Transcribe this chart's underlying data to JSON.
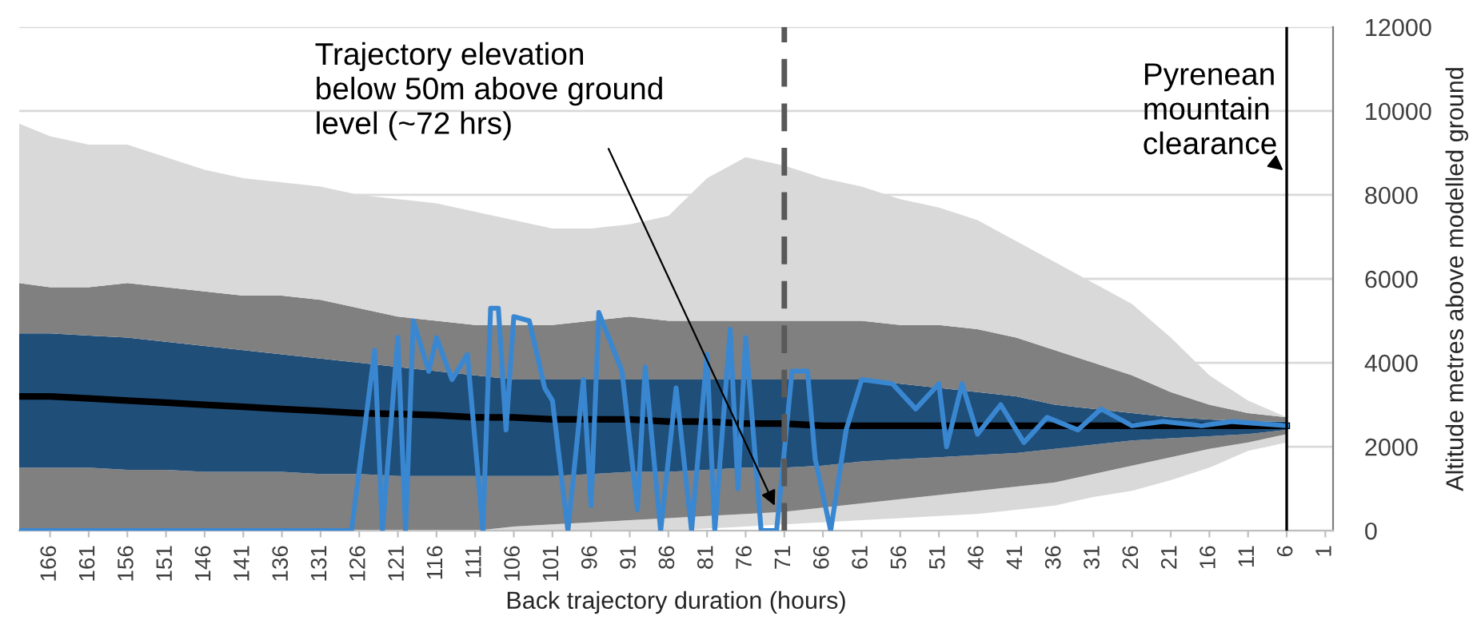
{
  "chart_data": {
    "type": "area",
    "xlabel": "Back trajectory duration (hours)",
    "ylabel": "Altitude metres above modelled ground",
    "x": [
      170,
      166,
      161,
      156,
      151,
      146,
      141,
      136,
      131,
      126,
      121,
      116,
      111,
      106,
      101,
      96,
      91,
      86,
      81,
      76,
      71,
      66,
      61,
      56,
      51,
      46,
      41,
      36,
      31,
      26,
      21,
      16,
      11,
      6
    ],
    "series": [
      {
        "color": "#ffffff",
        "values": [
          0,
          0,
          0,
          0,
          0,
          0,
          0,
          0,
          0,
          0,
          0,
          0,
          0,
          0,
          0,
          0,
          0,
          0,
          50,
          100,
          150,
          200,
          250,
          300,
          350,
          400,
          500,
          600,
          800,
          950,
          1200,
          1500,
          1900,
          2100
        ]
      },
      {
        "color": "#d9d9d9",
        "values": [
          0,
          0,
          0,
          0,
          0,
          0,
          0,
          0,
          0,
          0,
          0,
          0,
          0,
          100,
          150,
          200,
          250,
          300,
          300,
          300,
          300,
          350,
          400,
          450,
          500,
          550,
          550,
          550,
          550,
          600,
          550,
          450,
          200,
          200
        ]
      },
      {
        "color": "#808080",
        "values": [
          1500,
          1500,
          1500,
          1450,
          1450,
          1400,
          1400,
          1400,
          1350,
          1350,
          1300,
          1300,
          1300,
          1200,
          1150,
          1150,
          1150,
          1100,
          1100,
          1100,
          1050,
          1000,
          1000,
          950,
          900,
          850,
          800,
          800,
          700,
          600,
          450,
          300,
          200,
          100
        ]
      },
      {
        "color": "#1f4e79",
        "values": [
          3200,
          3200,
          3150,
          3150,
          3050,
          3000,
          2900,
          2800,
          2750,
          2650,
          2600,
          2500,
          2400,
          2300,
          2300,
          2250,
          2200,
          2200,
          2150,
          2100,
          2100,
          2050,
          1950,
          1800,
          1650,
          1500,
          1350,
          1050,
          850,
          650,
          500,
          400,
          300,
          200
        ]
      },
      {
        "color": "#808080",
        "values": [
          1200,
          1100,
          1150,
          1300,
          1300,
          1300,
          1300,
          1400,
          1400,
          1300,
          1200,
          1200,
          1200,
          1300,
          1300,
          1400,
          1500,
          1400,
          1400,
          1400,
          1400,
          1400,
          1400,
          1400,
          1500,
          1500,
          1400,
          1300,
          1100,
          900,
          600,
          350,
          200,
          100
        ]
      },
      {
        "color": "#d9d9d9",
        "values": [
          3800,
          3600,
          3400,
          3300,
          3100,
          2900,
          2800,
          2700,
          2700,
          2700,
          2800,
          2800,
          2700,
          2500,
          2300,
          2200,
          2200,
          2500,
          3400,
          3900,
          3700,
          3400,
          3200,
          3000,
          2800,
          2600,
          2300,
          2100,
          1900,
          1700,
          1300,
          700,
          300,
          0
        ]
      },
      {
        "type": "line",
        "color": "#000000",
        "values": [
          3200,
          3200,
          3150,
          3100,
          3050,
          3000,
          2950,
          2900,
          2850,
          2800,
          2780,
          2750,
          2700,
          2700,
          2650,
          2650,
          2650,
          2600,
          2600,
          2550,
          2550,
          2500,
          2500,
          2500,
          2500,
          2500,
          2500,
          2500,
          2500,
          2500,
          2500,
          2500,
          2500,
          2500
        ]
      },
      {
        "type": "line",
        "color": "#3a87d1",
        "x": [
          170,
          127,
          124,
          123,
          121,
          120,
          119,
          117,
          116,
          114,
          112,
          110,
          109,
          108,
          107,
          106,
          104,
          102,
          101,
          99,
          97,
          96,
          95,
          92,
          90,
          89,
          87,
          85,
          83,
          81,
          80,
          78,
          77,
          76,
          74,
          72,
          70,
          68,
          67,
          65,
          63,
          61,
          57,
          54,
          51,
          50,
          48,
          46,
          43,
          40,
          37,
          33,
          30,
          26,
          22,
          17,
          13,
          6
        ],
        "values": [
          0,
          0,
          4300,
          0,
          4600,
          0,
          5000,
          3800,
          4600,
          3600,
          4200,
          0,
          5300,
          5300,
          2400,
          5100,
          5000,
          3400,
          3100,
          0,
          3600,
          600,
          5200,
          3800,
          500,
          3900,
          0,
          3400,
          0,
          4200,
          0,
          4800,
          1000,
          4600,
          0,
          0,
          3800,
          3800,
          1700,
          0,
          2400,
          3600,
          3500,
          2900,
          3500,
          2000,
          3500,
          2300,
          3000,
          2100,
          2700,
          2400,
          2900,
          2500,
          2600,
          2500,
          2600,
          2500
        ]
      }
    ],
    "ref_lines": [
      {
        "axis": "x",
        "value": 71,
        "color": "#595959",
        "line_style": "dashed"
      },
      {
        "axis": "x",
        "value": 6,
        "color": "#000000",
        "line_style": "solid",
        "label": "Pyrenean mountain clearance"
      }
    ],
    "annotations": [
      {
        "text": "Trajectory elevation below 50m above ground level (~72 hrs)",
        "x": 72,
        "y": 500
      }
    ],
    "xlim": [
      170,
      0
    ],
    "xticks": [
      166,
      161,
      156,
      151,
      146,
      141,
      136,
      131,
      126,
      121,
      116,
      111,
      106,
      101,
      96,
      91,
      86,
      81,
      76,
      71,
      66,
      61,
      56,
      51,
      46,
      41,
      36,
      31,
      26,
      21,
      16,
      11,
      6,
      1
    ],
    "ylim": [
      0,
      12000
    ],
    "yticks": [
      0,
      2000,
      4000,
      6000,
      8000,
      10000,
      12000
    ],
    "stacked": true,
    "grid": "y",
    "legend": false
  }
}
